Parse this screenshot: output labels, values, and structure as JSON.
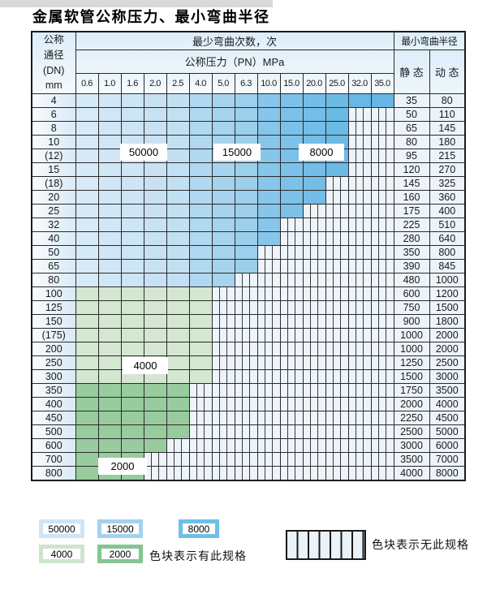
{
  "title": "金属软管公称压力、最小弯曲半径",
  "table": {
    "corner_lines": [
      "公称",
      "通径",
      "(DN)",
      "mm"
    ],
    "bend_cycles_header": "最少弯曲次数，次",
    "bend_radius_header": "最小弯曲半径",
    "pressure_header": "公称压力（PN）MPa",
    "pressure_columns": [
      "0.6",
      "1.0",
      "1.6",
      "2.0",
      "2.5",
      "4.0",
      "5.0",
      "6.3",
      "10.0",
      "15.0",
      "20.0",
      "25.0",
      "32.0",
      "35.0"
    ],
    "static_header": "静 态",
    "dynamic_header": "动 态",
    "rows": [
      {
        "dn": "4",
        "zone": "blue",
        "available_columns": 14,
        "max_pn": "35.0",
        "static": "35",
        "dynamic": "80"
      },
      {
        "dn": "6",
        "zone": "blue",
        "available_columns": 12,
        "max_pn": "25.0",
        "static": "50",
        "dynamic": "110"
      },
      {
        "dn": "8",
        "zone": "blue",
        "available_columns": 12,
        "max_pn": "25.0",
        "static": "65",
        "dynamic": "145"
      },
      {
        "dn": "10",
        "zone": "blue",
        "available_columns": 12,
        "max_pn": "25.0",
        "static": "80",
        "dynamic": "180"
      },
      {
        "dn": "(12)",
        "zone": "blue",
        "available_columns": 12,
        "max_pn": "25.0",
        "static": "95",
        "dynamic": "215"
      },
      {
        "dn": "15",
        "zone": "blue",
        "available_columns": 12,
        "max_pn": "25.0",
        "static": "120",
        "dynamic": "270"
      },
      {
        "dn": "(18)",
        "zone": "blue",
        "available_columns": 11,
        "max_pn": "20.0",
        "static": "145",
        "dynamic": "325"
      },
      {
        "dn": "20",
        "zone": "blue",
        "available_columns": 11,
        "max_pn": "20.0",
        "static": "160",
        "dynamic": "360"
      },
      {
        "dn": "25",
        "zone": "blue",
        "available_columns": 10,
        "max_pn": "15.0",
        "static": "175",
        "dynamic": "400"
      },
      {
        "dn": "32",
        "zone": "blue",
        "available_columns": 9,
        "max_pn": "10.0",
        "static": "225",
        "dynamic": "510"
      },
      {
        "dn": "40",
        "zone": "blue",
        "available_columns": 9,
        "max_pn": "10.0",
        "static": "280",
        "dynamic": "640"
      },
      {
        "dn": "50",
        "zone": "blue",
        "available_columns": 8,
        "max_pn": "6.3",
        "static": "350",
        "dynamic": "800"
      },
      {
        "dn": "65",
        "zone": "blue",
        "available_columns": 8,
        "max_pn": "6.3",
        "static": "390",
        "dynamic": "845"
      },
      {
        "dn": "80",
        "zone": "blue",
        "available_columns": 7,
        "max_pn": "5.0",
        "static": "480",
        "dynamic": "1000"
      },
      {
        "dn": "100",
        "zone": "green_light",
        "available_columns": 6,
        "max_pn": "4.0",
        "static": "600",
        "dynamic": "1200"
      },
      {
        "dn": "125",
        "zone": "green_light",
        "available_columns": 6,
        "max_pn": "4.0",
        "static": "750",
        "dynamic": "1500"
      },
      {
        "dn": "150",
        "zone": "green_light",
        "available_columns": 6,
        "max_pn": "4.0",
        "static": "900",
        "dynamic": "1800"
      },
      {
        "dn": "(175)",
        "zone": "green_light",
        "available_columns": 6,
        "max_pn": "4.0",
        "static": "1000",
        "dynamic": "2000"
      },
      {
        "dn": "200",
        "zone": "green_light",
        "available_columns": 6,
        "max_pn": "4.0",
        "static": "1000",
        "dynamic": "2000"
      },
      {
        "dn": "250",
        "zone": "green_light",
        "available_columns": 6,
        "max_pn": "4.0",
        "static": "1250",
        "dynamic": "2500"
      },
      {
        "dn": "300",
        "zone": "green_light",
        "available_columns": 6,
        "max_pn": "4.0",
        "static": "1500",
        "dynamic": "3000"
      },
      {
        "dn": "350",
        "zone": "green_dark",
        "available_columns": 5,
        "max_pn": "2.5",
        "static": "1750",
        "dynamic": "3500"
      },
      {
        "dn": "400",
        "zone": "green_dark",
        "available_columns": 5,
        "max_pn": "2.5",
        "static": "2000",
        "dynamic": "4000"
      },
      {
        "dn": "450",
        "zone": "green_dark",
        "available_columns": 5,
        "max_pn": "2.5",
        "static": "2250",
        "dynamic": "4500"
      },
      {
        "dn": "500",
        "zone": "green_dark",
        "available_columns": 5,
        "max_pn": "2.5",
        "static": "2500",
        "dynamic": "5000"
      },
      {
        "dn": "600",
        "zone": "green_dark",
        "available_columns": 4,
        "max_pn": "2.0",
        "static": "3000",
        "dynamic": "6000"
      },
      {
        "dn": "700",
        "zone": "green_dark",
        "available_columns": 3,
        "max_pn": "1.6",
        "static": "3500",
        "dynamic": "7000"
      },
      {
        "dn": "800",
        "zone": "green_dark",
        "available_columns": 3,
        "max_pn": "1.6",
        "static": "4000",
        "dynamic": "8000"
      }
    ],
    "column_cycle_zones": {
      "0.6-2.5": "50000",
      "4.0-6.3": "15000",
      "10.0-35.0": "8000"
    },
    "green_row_cycles": {
      "100-300": "4000",
      "350-800": "2000"
    }
  },
  "cycle_labels": {
    "c50000": "50000",
    "c15000": "15000",
    "c8000": "8000",
    "c4000": "4000",
    "c2000": "2000"
  },
  "legend": {
    "swatches": [
      {
        "label": "50000",
        "color": "#cfe5f5"
      },
      {
        "label": "15000",
        "color": "#a3d2ee"
      },
      {
        "label": "8000",
        "color": "#6fbfe8"
      },
      {
        "label": "4000",
        "color": "#cde5cb"
      },
      {
        "label": "2000",
        "color": "#85c58f"
      }
    ],
    "available_note": "色块表示有此规格",
    "unavailable_note": "色块表示无此规格"
  },
  "colors": {
    "blue_columns": [
      "#d7eaf8",
      "#d2e7f6",
      "#cde5f5",
      "#c8e2f4",
      "#c3e0f3",
      "#b0d8f0",
      "#a6d3ee",
      "#9ccfec",
      "#87c6ea",
      "#7cc1e9",
      "#73bde7",
      "#6cbae6",
      "#68b8e6",
      "#64b6e5"
    ],
    "green_light": "#d4e7d1",
    "green_dark": "#98cc9e",
    "hatch_bg": "#eef4fb",
    "grid": "#2a2a2a"
  }
}
